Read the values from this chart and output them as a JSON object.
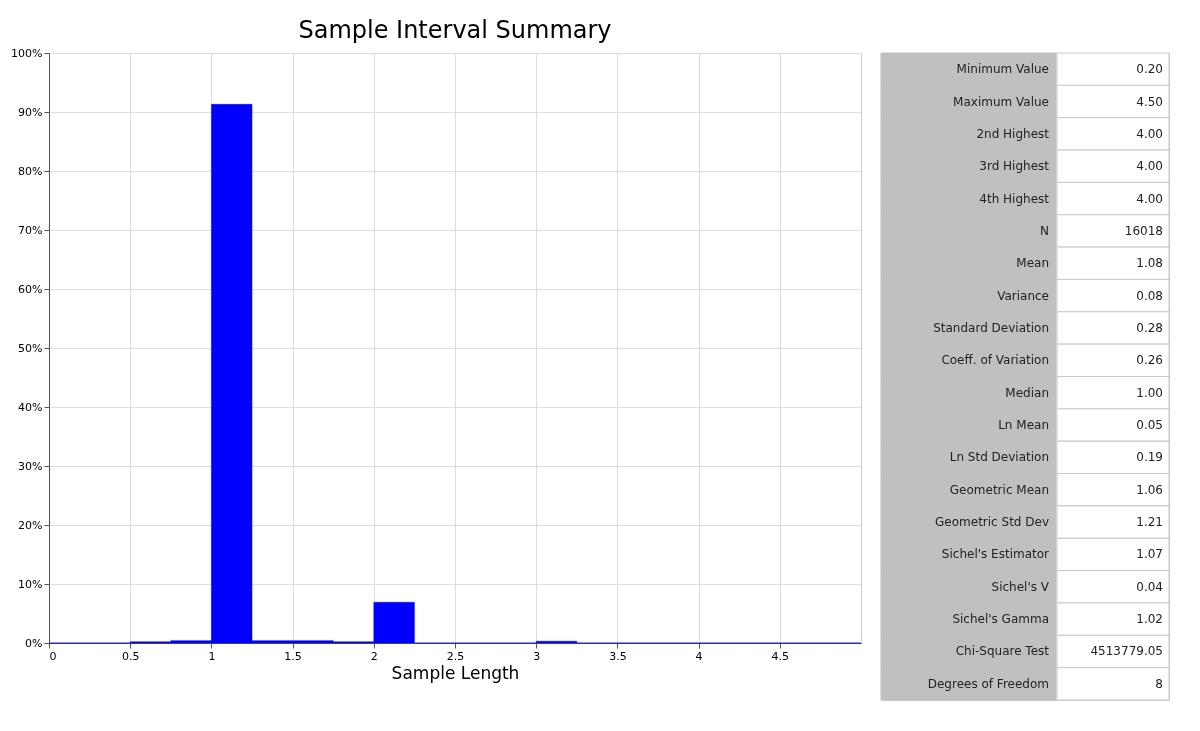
{
  "chart_data": [
    {
      "type": "histogram",
      "title": "Sample Interval Summary",
      "xlabel": "Sample Length",
      "color": "#0000ff",
      "bins": [
        0,
        0.25,
        0.5,
        0.75,
        1,
        1.25,
        1.5,
        1.75,
        2,
        2.25,
        2.5,
        2.75,
        3,
        3.25,
        3.5,
        3.75,
        4,
        4.25,
        4.5,
        4.75,
        5
      ],
      "values": [
        0,
        0,
        0.2,
        0.4,
        91.3,
        0.4,
        0.4,
        0.2,
        6.9,
        0,
        0,
        0,
        0.3,
        0,
        0,
        0,
        0,
        0,
        0,
        0
      ],
      "xlim": [
        0,
        5
      ],
      "xticks": [
        0,
        0.5,
        1,
        1.5,
        2,
        2.5,
        3,
        3.5,
        4,
        4.5
      ],
      "ylim": [
        0,
        100
      ],
      "yticks": [
        {
          "value": 0,
          "label": "0%"
        },
        {
          "value": 10,
          "label": "10%"
        },
        {
          "value": 20,
          "label": "20%"
        },
        {
          "value": 30,
          "label": "30%"
        },
        {
          "value": 40,
          "label": "40%"
        },
        {
          "value": 50,
          "label": "50%"
        },
        {
          "value": 60,
          "label": "60%"
        },
        {
          "value": 70,
          "label": "70%"
        },
        {
          "value": 80,
          "label": "80%"
        },
        {
          "value": 90,
          "label": "90%"
        },
        {
          "value": 100,
          "label": "100%"
        }
      ],
      "grid": true
    },
    {
      "type": "other",
      "categories": [
        "Minimum Value",
        "Maximum Value",
        "2nd Highest",
        "3rd Highest",
        "4th Highest",
        "N",
        "Mean",
        "Variance",
        "Standard Deviation",
        "Coeff. of Variation",
        "Median",
        "Ln Mean",
        "Ln Std Deviation",
        "Geometric Mean",
        "Geometric Std Dev",
        "Sichel's Estimator",
        "Sichel's V",
        "Sichel's Gamma",
        "Chi-Square Test",
        "Degrees of Freedom"
      ],
      "value_labels": [
        "0.20",
        "4.50",
        "4.00",
        "4.00",
        "4.00",
        "16018",
        "1.08",
        "0.08",
        "0.28",
        "0.26",
        "1.00",
        "0.05",
        "0.19",
        "1.06",
        "1.21",
        "1.07",
        "0.04",
        "1.02",
        "4513779.05",
        "8"
      ]
    }
  ]
}
